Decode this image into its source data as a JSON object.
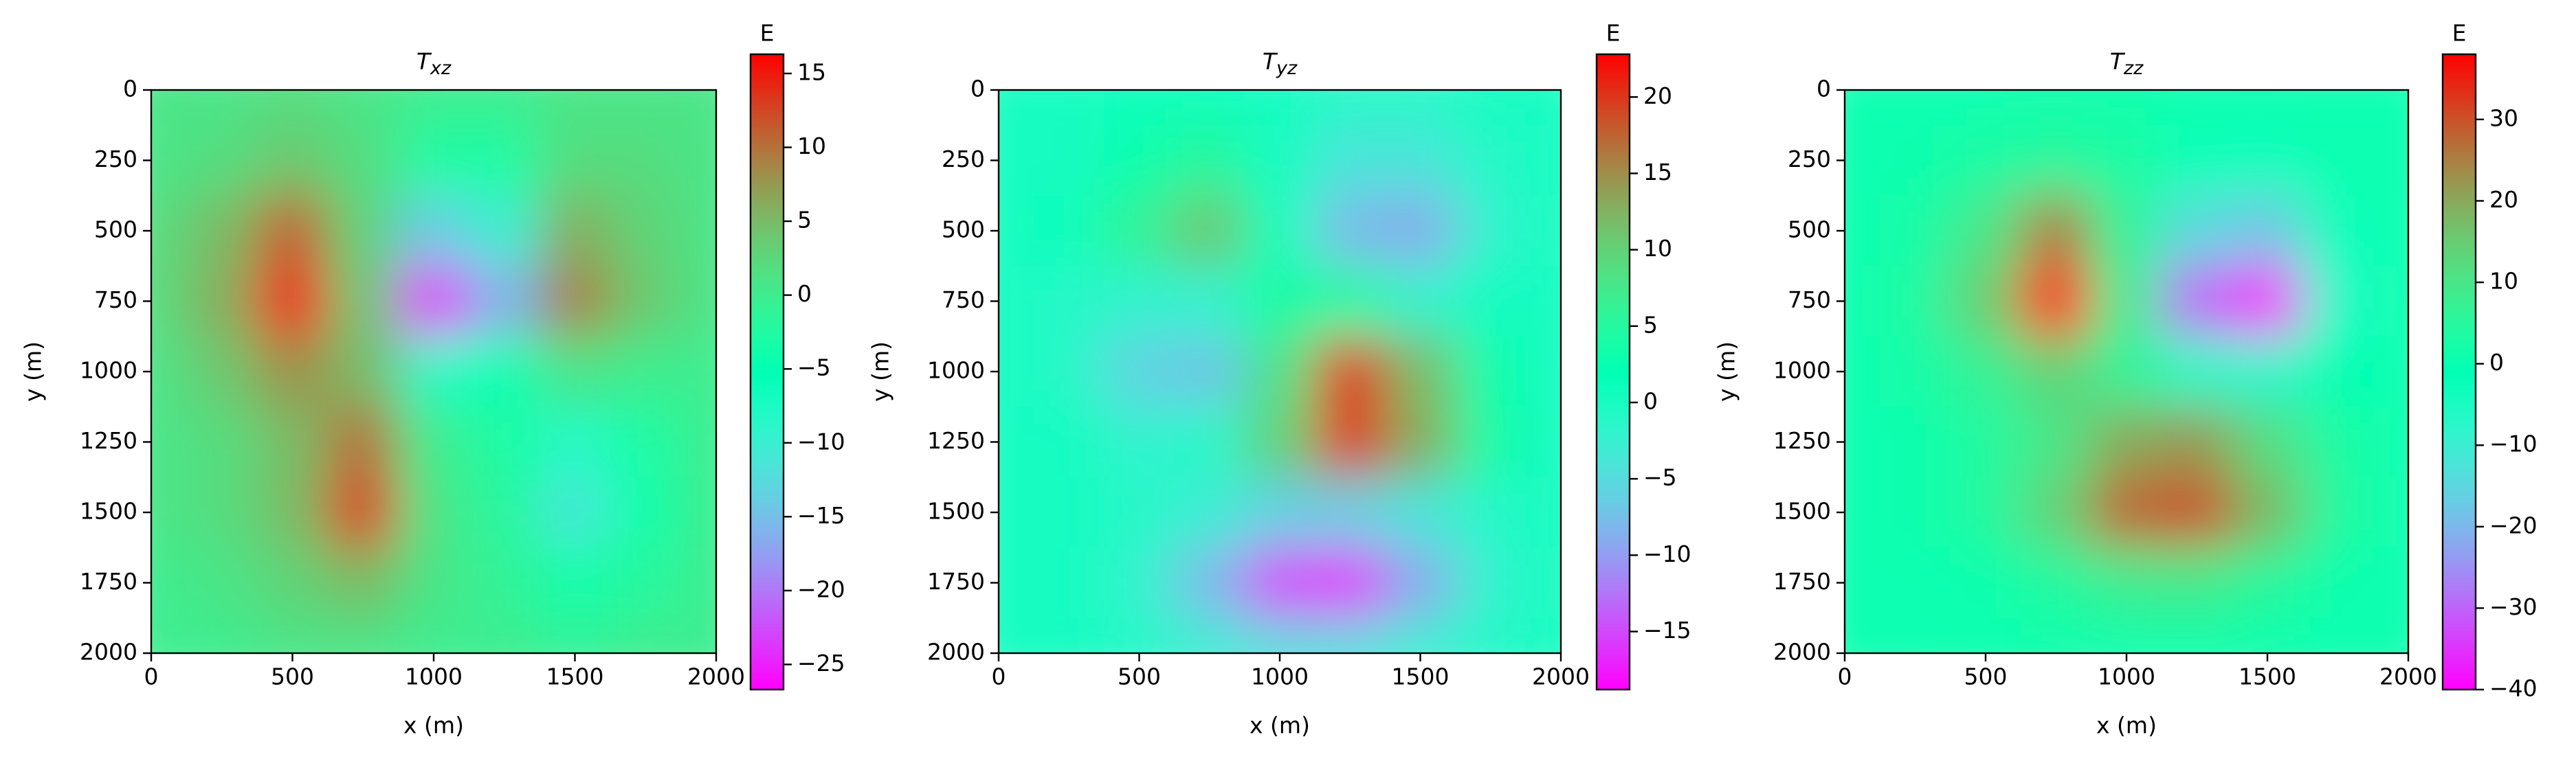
{
  "chart_data": [
    {
      "type": "heatmap",
      "title": {
        "text": "T",
        "subscript": "xz"
      },
      "xlabel": "x (m)",
      "ylabel": "y (m)",
      "x": [
        0,
        250,
        500,
        750,
        1000,
        1250,
        1500,
        1750,
        2000
      ],
      "y": [
        0,
        250,
        500,
        750,
        1000,
        1250,
        1500,
        1750,
        2000
      ],
      "z": [
        [
          1,
          1,
          2,
          1,
          0,
          0,
          1,
          1,
          1
        ],
        [
          1,
          2,
          4,
          2,
          -3,
          -3,
          2,
          2,
          1
        ],
        [
          2,
          5,
          11,
          3,
          -14,
          -10,
          6,
          3,
          1
        ],
        [
          2,
          6,
          15,
          4,
          -24,
          -16,
          9,
          4,
          1
        ],
        [
          1,
          4,
          8,
          5,
          -8,
          -5,
          1,
          0,
          0
        ],
        [
          1,
          2,
          5,
          10,
          0,
          -3,
          -8,
          -3,
          0
        ],
        [
          1,
          2,
          5,
          13,
          1,
          -2,
          -11,
          -4,
          0
        ],
        [
          0,
          1,
          3,
          5,
          1,
          -1,
          -4,
          -2,
          0
        ],
        [
          0,
          0,
          1,
          1,
          0,
          0,
          -1,
          0,
          0
        ]
      ],
      "xlim": [
        0,
        2000
      ],
      "ylim": [
        2000,
        0
      ],
      "xticks": [
        0,
        500,
        1000,
        1500,
        2000
      ],
      "yticks": [
        0,
        250,
        500,
        750,
        1000,
        1250,
        1500,
        1750,
        2000
      ],
      "colorbar": {
        "label": "E",
        "cmap": "rainbow",
        "clim": [
          -26.7,
          16.3
        ],
        "ticks": [
          {
            "value": -25,
            "label": "−25"
          },
          {
            "value": -20,
            "label": "−20"
          },
          {
            "value": -15,
            "label": "−15"
          },
          {
            "value": -10,
            "label": "−10"
          },
          {
            "value": -5,
            "label": "−5"
          },
          0,
          5,
          10,
          15
        ]
      }
    },
    {
      "type": "heatmap",
      "title": {
        "text": "T",
        "subscript": "yz"
      },
      "xlabel": "x (m)",
      "ylabel": "y (m)",
      "x": [
        0,
        250,
        500,
        750,
        1000,
        1250,
        1500,
        1750,
        2000
      ],
      "y": [
        0,
        250,
        500,
        750,
        1000,
        1250,
        1500,
        1750,
        2000
      ],
      "z": [
        [
          0,
          0,
          1,
          1,
          0,
          -1,
          -1,
          0,
          0
        ],
        [
          0,
          0,
          3,
          5,
          0,
          -4,
          -4,
          -1,
          0
        ],
        [
          0,
          1,
          6,
          11,
          1,
          -8,
          -9,
          -2,
          0
        ],
        [
          0,
          -1,
          -2,
          -2,
          4,
          4,
          -2,
          0,
          0
        ],
        [
          0,
          -1,
          -6,
          -7,
          8,
          20,
          12,
          3,
          0
        ],
        [
          0,
          0,
          -2,
          -1,
          10,
          20,
          13,
          4,
          0
        ],
        [
          0,
          0,
          -1,
          -3,
          -6,
          -6,
          -4,
          -1,
          0
        ],
        [
          0,
          0,
          -2,
          -8,
          -15,
          -16,
          -9,
          -2,
          0
        ],
        [
          0,
          0,
          -1,
          -3,
          -5,
          -5,
          -3,
          -1,
          0
        ]
      ],
      "xlim": [
        0,
        2000
      ],
      "ylim": [
        2000,
        0
      ],
      "xticks": [
        0,
        500,
        1000,
        1500,
        2000
      ],
      "yticks": [
        0,
        250,
        500,
        750,
        1000,
        1250,
        1500,
        1750,
        2000
      ],
      "colorbar": {
        "label": "E",
        "cmap": "rainbow",
        "clim": [
          -18.8,
          22.8
        ],
        "ticks": [
          {
            "value": -15,
            "label": "−15"
          },
          {
            "value": -10,
            "label": "−10"
          },
          {
            "value": -5,
            "label": "−5"
          },
          0,
          5,
          10,
          15,
          20
        ]
      }
    },
    {
      "type": "heatmap",
      "title": {
        "text": "T",
        "subscript": "zz"
      },
      "xlabel": "x (m)",
      "ylabel": "y (m)",
      "x": [
        0,
        250,
        500,
        750,
        1000,
        1250,
        1500,
        1750,
        2000
      ],
      "y": [
        0,
        250,
        500,
        750,
        1000,
        1250,
        1500,
        1750,
        2000
      ],
      "z": [
        [
          0,
          0,
          0,
          1,
          1,
          0,
          0,
          0,
          0
        ],
        [
          0,
          1,
          3,
          5,
          3,
          -2,
          -3,
          0,
          0
        ],
        [
          0,
          2,
          10,
          25,
          6,
          -15,
          -18,
          -3,
          0
        ],
        [
          0,
          3,
          15,
          38,
          8,
          -30,
          -38,
          -6,
          0
        ],
        [
          0,
          2,
          7,
          14,
          6,
          -6,
          -8,
          -1,
          0
        ],
        [
          0,
          1,
          4,
          10,
          20,
          22,
          12,
          3,
          0
        ],
        [
          0,
          1,
          4,
          14,
          28,
          30,
          18,
          4,
          0
        ],
        [
          0,
          0,
          1,
          4,
          8,
          9,
          5,
          1,
          0
        ],
        [
          0,
          0,
          0,
          1,
          1,
          1,
          1,
          0,
          0
        ]
      ],
      "xlim": [
        0,
        2000
      ],
      "ylim": [
        2000,
        0
      ],
      "xticks": [
        0,
        500,
        1000,
        1500,
        2000
      ],
      "yticks": [
        0,
        250,
        500,
        750,
        1000,
        1250,
        1500,
        1750,
        2000
      ],
      "colorbar": {
        "label": "E",
        "cmap": "rainbow",
        "clim": [
          -40,
          38
        ],
        "ticks": [
          {
            "value": -40,
            "label": "−40"
          },
          {
            "value": -30,
            "label": "−30"
          },
          {
            "value": -20,
            "label": "−20"
          },
          {
            "value": -10,
            "label": "−10"
          },
          0,
          10,
          20,
          30
        ]
      }
    }
  ]
}
